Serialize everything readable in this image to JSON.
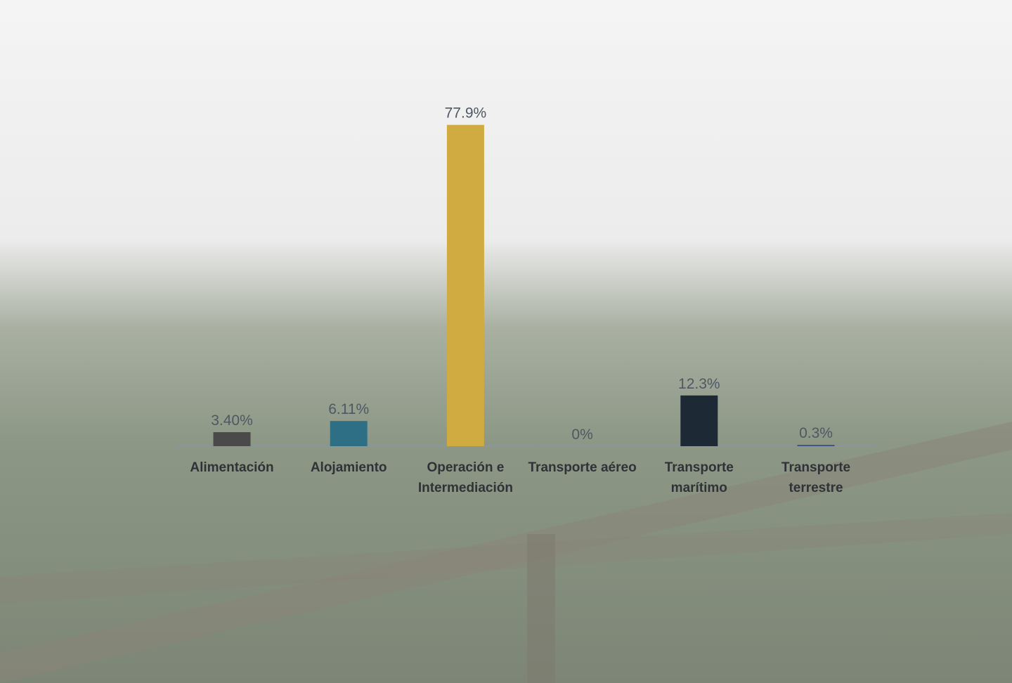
{
  "chart_data": {
    "type": "bar",
    "categories": [
      "Alimentación",
      "Alojamiento",
      "Operación e Intermediación",
      "Transporte aéreo",
      "Transporte marítimo",
      "Transporte terrestre"
    ],
    "values": [
      3.4,
      6.11,
      77.9,
      0,
      12.3,
      0.3
    ],
    "value_labels": [
      "3.40%",
      "6.11%",
      "77.9%",
      "0%",
      "12.3%",
      "0.3%"
    ],
    "colors": [
      "#4a4a4a",
      "#2f6f86",
      "#cfab42",
      "#6b7a88",
      "#1d2a36",
      "#3b4c85"
    ]
  }
}
